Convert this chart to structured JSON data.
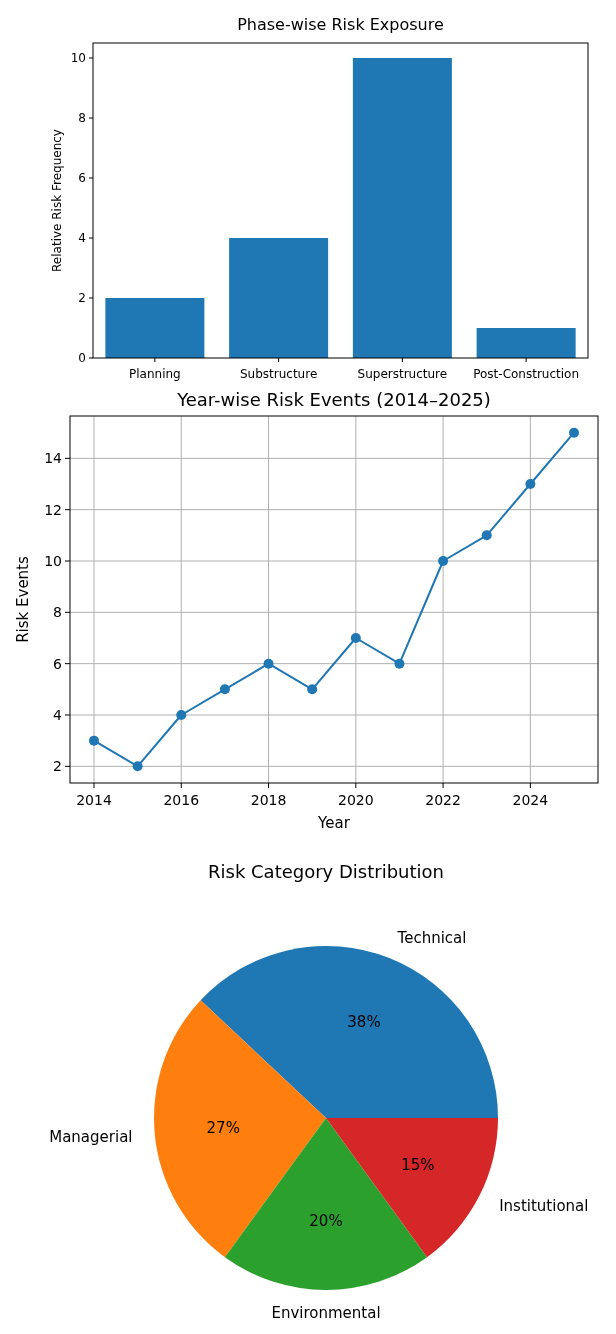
{
  "chart_data": [
    {
      "type": "bar",
      "title": "Phase-wise Risk Exposure",
      "ylabel": "Relative Risk Frequency",
      "categories": [
        "Planning",
        "Substructure",
        "Superstructure",
        "Post-Construction"
      ],
      "values": [
        2,
        4,
        10,
        1
      ],
      "color": "#1f77b4",
      "ylim": [
        0,
        10.5
      ],
      "yticks": [
        0,
        2,
        4,
        6,
        8,
        10
      ]
    },
    {
      "type": "line",
      "title": "Year-wise Risk Events (2014–2025)",
      "xlabel": "Year",
      "ylabel": "Risk Events",
      "x": [
        2014,
        2015,
        2016,
        2017,
        2018,
        2019,
        2020,
        2021,
        2022,
        2023,
        2024,
        2025
      ],
      "values": [
        3,
        2,
        4,
        5,
        6,
        5,
        7,
        6,
        10,
        11,
        13,
        15
      ],
      "color": "#1f77b4",
      "xlim": [
        2013.45,
        2025.55
      ],
      "ylim": [
        1.35,
        15.65
      ],
      "xticks": [
        2014,
        2016,
        2018,
        2020,
        2022,
        2024
      ],
      "yticks": [
        2,
        4,
        6,
        8,
        10,
        12,
        14
      ],
      "grid": true,
      "marker": "circle"
    },
    {
      "type": "pie",
      "title": "Risk Category Distribution",
      "categories": [
        "Technical",
        "Managerial",
        "Environmental",
        "Institutional"
      ],
      "values": [
        38,
        27,
        20,
        15
      ],
      "colors": [
        "#1f77b4",
        "#ff7f0e",
        "#2ca02c",
        "#d62728"
      ],
      "value_labels": [
        "38%",
        "27%",
        "20%",
        "15%"
      ]
    }
  ]
}
